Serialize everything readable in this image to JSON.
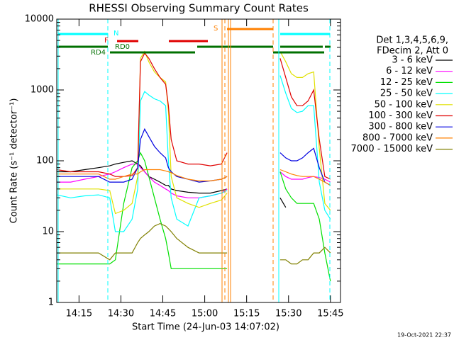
{
  "chart_data": {
    "type": "line",
    "title": "RHESSI Observing Summary Count Rates",
    "x_label": "Start Time (24-Jun-03 14:07:02)",
    "y_label": "Count Rate (s⁻¹ detector⁻¹)",
    "legend_header": [
      "Det 1,3,4,5,6,9,",
      "FDecim 2, Att 0"
    ],
    "timestamp": "19-Oct-2021 22:37",
    "annotations": [
      "N",
      "F",
      "RD0",
      "RD4",
      "S"
    ],
    "log_y": true,
    "xlim": [
      7.033,
      108.6
    ],
    "ylim": [
      1,
      10000
    ],
    "xticks": [
      {
        "value": 15,
        "label": "14:15"
      },
      {
        "value": 30,
        "label": "14:30"
      },
      {
        "value": 45,
        "label": "14:45"
      },
      {
        "value": 60,
        "label": "15:00"
      },
      {
        "value": 75,
        "label": "15:15"
      },
      {
        "value": 90,
        "label": "15:30"
      },
      {
        "value": 105,
        "label": "15:45"
      }
    ],
    "yticks": [
      1,
      10,
      100,
      1000,
      10000
    ],
    "x": [
      7,
      12,
      17,
      22,
      26,
      28,
      31,
      34,
      36,
      37,
      38.5,
      40,
      42,
      44,
      46,
      47,
      48,
      50,
      54,
      58,
      62,
      66,
      68,
      77,
      87,
      89,
      91,
      93,
      95,
      97,
      99,
      101,
      103,
      105
    ],
    "series": [
      {
        "name": "3 - 6 keV",
        "color": "#000000",
        "values": [
          70,
          70,
          75,
          80,
          85,
          90,
          95,
          100,
          90,
          85,
          70,
          60,
          55,
          50,
          45,
          45,
          40,
          38,
          36,
          35,
          35,
          38,
          40,
          null,
          30,
          22,
          null,
          null,
          null,
          null,
          null,
          null,
          null,
          null
        ]
      },
      {
        "name": "6 - 12 keV",
        "color": "#ff00ff",
        "values": [
          50,
          50,
          55,
          60,
          65,
          70,
          80,
          90,
          90,
          80,
          70,
          60,
          50,
          45,
          40,
          38,
          35,
          32,
          30,
          30,
          32,
          35,
          40,
          null,
          70,
          60,
          55,
          55,
          55,
          58,
          60,
          58,
          55,
          50
        ]
      },
      {
        "name": "12 - 25 keV",
        "color": "#00e000",
        "values": [
          3.5,
          3.5,
          3.5,
          3.5,
          3.5,
          4,
          25,
          80,
          100,
          130,
          100,
          60,
          30,
          15,
          8,
          5,
          3,
          3,
          3,
          3,
          3,
          3,
          3,
          null,
          70,
          40,
          30,
          25,
          25,
          25,
          25,
          15,
          5,
          2
        ]
      },
      {
        "name": "25 - 50 keV",
        "color": "#00ffff",
        "values": [
          33,
          30,
          32,
          33,
          30,
          10,
          10,
          15,
          40,
          700,
          950,
          850,
          750,
          700,
          600,
          100,
          30,
          15,
          12,
          30,
          32,
          35,
          38,
          null,
          1600,
          900,
          550,
          480,
          500,
          600,
          600,
          50,
          20,
          15
        ]
      },
      {
        "name": "50 - 100 keV",
        "color": "#e0e000",
        "values": [
          40,
          40,
          40,
          40,
          38,
          18,
          20,
          25,
          60,
          2800,
          3500,
          2500,
          1800,
          1500,
          1300,
          500,
          60,
          30,
          25,
          22,
          25,
          28,
          35,
          null,
          3500,
          2500,
          1700,
          1500,
          1500,
          1700,
          1800,
          150,
          25,
          20
        ]
      },
      {
        "name": "100 - 300 keV",
        "color": "#e00000",
        "values": [
          75,
          70,
          70,
          70,
          65,
          60,
          60,
          62,
          80,
          2500,
          3300,
          2800,
          2000,
          1500,
          1200,
          600,
          200,
          100,
          90,
          90,
          85,
          90,
          130,
          null,
          2800,
          1500,
          800,
          600,
          600,
          700,
          1000,
          200,
          60,
          55
        ]
      },
      {
        "name": "300 - 800 keV",
        "color": "#0000e0",
        "values": [
          60,
          60,
          60,
          60,
          50,
          50,
          50,
          55,
          80,
          200,
          280,
          220,
          160,
          130,
          110,
          80,
          70,
          60,
          55,
          50,
          52,
          55,
          60,
          null,
          130,
          110,
          100,
          100,
          110,
          130,
          150,
          80,
          50,
          45
        ]
      },
      {
        "name": "800 - 7000 keV",
        "color": "#ff8000",
        "values": [
          65,
          65,
          65,
          65,
          55,
          55,
          60,
          65,
          65,
          70,
          75,
          75,
          75,
          75,
          72,
          70,
          68,
          62,
          55,
          52,
          52,
          55,
          60,
          null,
          75,
          70,
          65,
          62,
          60,
          60,
          60,
          55,
          50,
          45
        ]
      },
      {
        "name": "7000 - 15000 keV",
        "color": "#808000",
        "values": [
          5,
          5,
          5,
          5,
          4,
          5,
          5,
          5,
          7,
          8,
          9,
          10,
          12,
          13,
          12,
          11,
          10,
          8,
          6,
          5,
          5,
          5,
          5,
          null,
          4,
          4,
          3.5,
          3.5,
          4,
          4,
          5,
          5,
          6,
          5
        ]
      }
    ]
  }
}
